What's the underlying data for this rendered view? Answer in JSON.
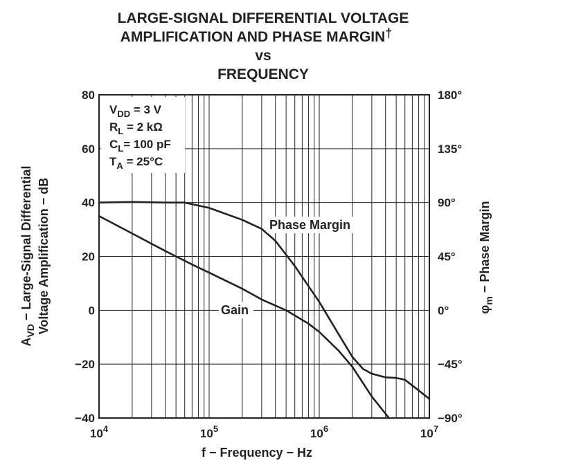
{
  "chart_data": {
    "type": "line",
    "title_lines": [
      "LARGE-SIGNAL DIFFERENTIAL VOLTAGE",
      "AMPLIFICATION AND PHASE MARGIN",
      "vs",
      "FREQUENCY"
    ],
    "title_dagger": "†",
    "xlabel": "f − Frequency − Hz",
    "ylabel_left_line1": "A",
    "ylabel_left_sub": "VD",
    "ylabel_left_rest": " − Large-Signal Differential",
    "ylabel_left_line2": "Voltage Amplification − dB",
    "ylabel_right_main": "φ",
    "ylabel_right_sub": "m",
    "ylabel_right_rest": " − Phase Margin",
    "x_scale": "log",
    "xlim": [
      10000,
      10000000
    ],
    "x_ticks": [
      {
        "value": 10000,
        "base": "10",
        "exp": "4"
      },
      {
        "value": 100000,
        "base": "10",
        "exp": "5"
      },
      {
        "value": 1000000,
        "base": "10",
        "exp": "6"
      },
      {
        "value": 10000000,
        "base": "10",
        "exp": "7"
      }
    ],
    "ylim_left": [
      -40,
      80
    ],
    "y_ticks_left": [
      "80",
      "60",
      "40",
      "20",
      "0",
      "−20",
      "−40"
    ],
    "y_tick_values_left": [
      80,
      60,
      40,
      20,
      0,
      -20,
      -40
    ],
    "ylim_right": [
      -90,
      180
    ],
    "y_ticks_right": [
      "180°",
      "135°",
      "90°",
      "45°",
      "0°",
      "−45°",
      "−90°"
    ],
    "y_tick_values_right": [
      180,
      135,
      90,
      45,
      0,
      -45,
      -90
    ],
    "grid": true,
    "conditions": [
      {
        "main": "V",
        "sub": "DD",
        "rest": " = 3 V"
      },
      {
        "main": "R",
        "sub": "L",
        "rest": " = 2 kΩ"
      },
      {
        "main": "C",
        "sub": "L",
        "rest": "= 100 pF"
      },
      {
        "main": "T",
        "sub": "A",
        "rest": " = 25°C"
      }
    ],
    "series": [
      {
        "name": "Gain",
        "label": "Gain",
        "axis": "left",
        "x": [
          10000,
          20000,
          40000,
          70000,
          100000,
          200000,
          300000,
          500000,
          800000,
          1000000,
          1500000,
          2000000,
          3000000,
          4300000
        ],
        "values": [
          35,
          28.5,
          22,
          17,
          14,
          8,
          4,
          0,
          -5,
          -8,
          -15,
          -21,
          -32,
          -40
        ]
      },
      {
        "name": "Phase Margin",
        "label": "Phase Margin",
        "axis": "right",
        "x": [
          10000,
          20000,
          40000,
          60000,
          100000,
          200000,
          300000,
          400000,
          600000,
          800000,
          1000000,
          1500000,
          2000000,
          2500000,
          3000000,
          4000000,
          5000000,
          6000000,
          8000000,
          10000000
        ],
        "values": [
          90,
          90.5,
          90,
          90,
          85.5,
          75.5,
          68,
          58,
          37,
          20,
          7,
          -20,
          -39,
          -49,
          -53,
          -56,
          -56.5,
          -58,
          -67,
          -74
        ]
      }
    ]
  }
}
